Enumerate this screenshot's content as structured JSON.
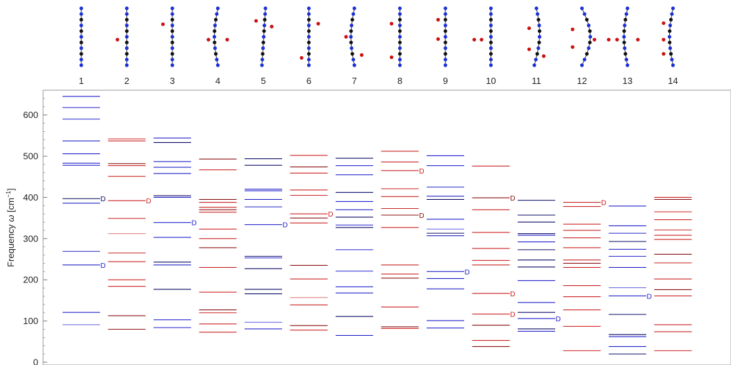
{
  "chart_data": {
    "type": "energy-level",
    "ylabel_main": "Frequency ",
    "ylabel_omega": "ω",
    "ylabel_unit_open": " [cm",
    "ylabel_exp": "−1",
    "ylabel_unit_close": "]",
    "ylim": [
      0,
      660
    ],
    "y_ticks": [
      0,
      100,
      200,
      300,
      400,
      500,
      600
    ],
    "categories": [
      "1",
      "2",
      "3",
      "4",
      "5",
      "6",
      "7",
      "8",
      "9",
      "10",
      "11",
      "12",
      "13",
      "14"
    ],
    "colors": {
      "red": "#cc2222",
      "blue": "#2222cc",
      "dark_red": "#8b1010",
      "dark_blue": "#0a0a66",
      "light_red": "#e08080",
      "light_blue": "#7070e0"
    },
    "columns": [
      {
        "label": "1",
        "levels": [
          {
            "v": 645,
            "c": "blue"
          },
          {
            "v": 618,
            "c": "blue"
          },
          {
            "v": 590,
            "c": "blue"
          },
          {
            "v": 537,
            "c": "blue"
          },
          {
            "v": 506,
            "c": "blue"
          },
          {
            "v": 483,
            "c": "blue"
          },
          {
            "v": 478,
            "c": "blue"
          },
          {
            "v": 397,
            "c": "dark_blue",
            "mark": "D"
          },
          {
            "v": 386,
            "c": "blue"
          },
          {
            "v": 269,
            "c": "blue"
          },
          {
            "v": 236,
            "c": "blue",
            "mark": "D"
          },
          {
            "v": 121,
            "c": "blue"
          },
          {
            "v": 91,
            "c": "light_blue"
          }
        ]
      },
      {
        "label": "2",
        "levels": [
          {
            "v": 542,
            "c": "red"
          },
          {
            "v": 537,
            "c": "red"
          },
          {
            "v": 482,
            "c": "dark_red"
          },
          {
            "v": 477,
            "c": "red"
          },
          {
            "v": 451,
            "c": "red"
          },
          {
            "v": 392,
            "c": "red",
            "mark": "D"
          },
          {
            "v": 349,
            "c": "red"
          },
          {
            "v": 312,
            "c": "light_red"
          },
          {
            "v": 265,
            "c": "red"
          },
          {
            "v": 244,
            "c": "red"
          },
          {
            "v": 200,
            "c": "red"
          },
          {
            "v": 184,
            "c": "red"
          },
          {
            "v": 113,
            "c": "dark_red"
          },
          {
            "v": 80,
            "c": "dark_red"
          }
        ]
      },
      {
        "label": "3",
        "levels": [
          {
            "v": 544,
            "c": "blue"
          },
          {
            "v": 533,
            "c": "dark_blue"
          },
          {
            "v": 487,
            "c": "blue"
          },
          {
            "v": 473,
            "c": "blue"
          },
          {
            "v": 458,
            "c": "blue"
          },
          {
            "v": 404,
            "c": "dark_blue"
          },
          {
            "v": 400,
            "c": "blue"
          },
          {
            "v": 339,
            "c": "blue",
            "mark": "D"
          },
          {
            "v": 303,
            "c": "blue"
          },
          {
            "v": 243,
            "c": "dark_blue"
          },
          {
            "v": 236,
            "c": "blue"
          },
          {
            "v": 177,
            "c": "dark_blue"
          },
          {
            "v": 103,
            "c": "blue"
          },
          {
            "v": 84,
            "c": "blue"
          }
        ]
      },
      {
        "label": "4",
        "levels": [
          {
            "v": 493,
            "c": "dark_red"
          },
          {
            "v": 467,
            "c": "red"
          },
          {
            "v": 395,
            "c": "dark_red"
          },
          {
            "v": 388,
            "c": "red"
          },
          {
            "v": 376,
            "c": "red"
          },
          {
            "v": 370,
            "c": "dark_red"
          },
          {
            "v": 364,
            "c": "red"
          },
          {
            "v": 323,
            "c": "red"
          },
          {
            "v": 300,
            "c": "red"
          },
          {
            "v": 278,
            "c": "dark_red"
          },
          {
            "v": 230,
            "c": "red"
          },
          {
            "v": 170,
            "c": "red"
          },
          {
            "v": 127,
            "c": "dark_red"
          },
          {
            "v": 120,
            "c": "red"
          },
          {
            "v": 93,
            "c": "red"
          },
          {
            "v": 73,
            "c": "red"
          }
        ]
      },
      {
        "label": "5",
        "levels": [
          {
            "v": 494,
            "c": "dark_blue"
          },
          {
            "v": 478,
            "c": "dark_blue"
          },
          {
            "v": 420,
            "c": "blue"
          },
          {
            "v": 416,
            "c": "blue"
          },
          {
            "v": 395,
            "c": "blue"
          },
          {
            "v": 377,
            "c": "blue"
          },
          {
            "v": 334,
            "c": "blue",
            "mark": "D"
          },
          {
            "v": 257,
            "c": "dark_blue"
          },
          {
            "v": 253,
            "c": "blue"
          },
          {
            "v": 227,
            "c": "dark_blue"
          },
          {
            "v": 177,
            "c": "dark_blue"
          },
          {
            "v": 166,
            "c": "dark_blue"
          },
          {
            "v": 97,
            "c": "light_blue"
          },
          {
            "v": 81,
            "c": "blue"
          }
        ]
      },
      {
        "label": "6",
        "levels": [
          {
            "v": 502,
            "c": "red"
          },
          {
            "v": 474,
            "c": "dark_red"
          },
          {
            "v": 459,
            "c": "red"
          },
          {
            "v": 418,
            "c": "red"
          },
          {
            "v": 405,
            "c": "red"
          },
          {
            "v": 360,
            "c": "red",
            "mark": "D"
          },
          {
            "v": 350,
            "c": "dark_red"
          },
          {
            "v": 338,
            "c": "red"
          },
          {
            "v": 235,
            "c": "dark_red"
          },
          {
            "v": 202,
            "c": "red"
          },
          {
            "v": 157,
            "c": "light_red"
          },
          {
            "v": 139,
            "c": "red"
          },
          {
            "v": 89,
            "c": "dark_red"
          },
          {
            "v": 78,
            "c": "red"
          }
        ]
      },
      {
        "label": "7",
        "levels": [
          {
            "v": 495,
            "c": "dark_blue"
          },
          {
            "v": 477,
            "c": "blue"
          },
          {
            "v": 455,
            "c": "blue"
          },
          {
            "v": 412,
            "c": "dark_blue"
          },
          {
            "v": 390,
            "c": "blue"
          },
          {
            "v": 370,
            "c": "blue"
          },
          {
            "v": 352,
            "c": "dark_blue"
          },
          {
            "v": 333,
            "c": "blue"
          },
          {
            "v": 327,
            "c": "dark_blue"
          },
          {
            "v": 273,
            "c": "blue"
          },
          {
            "v": 221,
            "c": "blue"
          },
          {
            "v": 183,
            "c": "blue"
          },
          {
            "v": 168,
            "c": "blue"
          },
          {
            "v": 111,
            "c": "dark_blue"
          },
          {
            "v": 65,
            "c": "blue"
          }
        ]
      },
      {
        "label": "8",
        "levels": [
          {
            "v": 512,
            "c": "red"
          },
          {
            "v": 486,
            "c": "red"
          },
          {
            "v": 465,
            "c": "red",
            "mark": "D"
          },
          {
            "v": 421,
            "c": "red"
          },
          {
            "v": 402,
            "c": "red"
          },
          {
            "v": 373,
            "c": "red"
          },
          {
            "v": 357,
            "c": "dark_red",
            "mark": "D"
          },
          {
            "v": 327,
            "c": "red"
          },
          {
            "v": 236,
            "c": "red"
          },
          {
            "v": 214,
            "c": "red"
          },
          {
            "v": 204,
            "c": "dark_red"
          },
          {
            "v": 134,
            "c": "red"
          },
          {
            "v": 86,
            "c": "dark_red"
          },
          {
            "v": 82,
            "c": "red"
          }
        ]
      },
      {
        "label": "9",
        "levels": [
          {
            "v": 501,
            "c": "blue"
          },
          {
            "v": 477,
            "c": "blue"
          },
          {
            "v": 425,
            "c": "blue"
          },
          {
            "v": 403,
            "c": "blue"
          },
          {
            "v": 395,
            "c": "dark_blue"
          },
          {
            "v": 347,
            "c": "blue"
          },
          {
            "v": 323,
            "c": "light_blue"
          },
          {
            "v": 313,
            "c": "dark_blue"
          },
          {
            "v": 307,
            "c": "blue"
          },
          {
            "v": 220,
            "c": "blue",
            "mark": "D"
          },
          {
            "v": 203,
            "c": "blue"
          },
          {
            "v": 178,
            "c": "blue"
          },
          {
            "v": 101,
            "c": "blue"
          },
          {
            "v": 83,
            "c": "blue"
          }
        ]
      },
      {
        "label": "10",
        "levels": [
          {
            "v": 476,
            "c": "red"
          },
          {
            "v": 399,
            "c": "dark_red",
            "mark": "D"
          },
          {
            "v": 370,
            "c": "red"
          },
          {
            "v": 315,
            "c": "red"
          },
          {
            "v": 276,
            "c": "red"
          },
          {
            "v": 247,
            "c": "red"
          },
          {
            "v": 236,
            "c": "red"
          },
          {
            "v": 167,
            "c": "red",
            "mark": "D"
          },
          {
            "v": 117,
            "c": "red",
            "mark": "D"
          },
          {
            "v": 90,
            "c": "dark_red"
          },
          {
            "v": 53,
            "c": "red"
          },
          {
            "v": 38,
            "c": "dark_red"
          }
        ]
      },
      {
        "label": "11",
        "levels": [
          {
            "v": 393,
            "c": "dark_blue"
          },
          {
            "v": 357,
            "c": "dark_blue"
          },
          {
            "v": 340,
            "c": "dark_blue"
          },
          {
            "v": 312,
            "c": "dark_blue"
          },
          {
            "v": 308,
            "c": "blue"
          },
          {
            "v": 292,
            "c": "blue"
          },
          {
            "v": 273,
            "c": "dark_blue"
          },
          {
            "v": 248,
            "c": "dark_blue"
          },
          {
            "v": 231,
            "c": "dark_blue"
          },
          {
            "v": 198,
            "c": "blue"
          },
          {
            "v": 145,
            "c": "blue"
          },
          {
            "v": 121,
            "c": "dark_blue"
          },
          {
            "v": 106,
            "c": "blue",
            "mark": "D"
          },
          {
            "v": 81,
            "c": "dark_blue"
          },
          {
            "v": 75,
            "c": "blue"
          }
        ]
      },
      {
        "label": "12",
        "levels": [
          {
            "v": 388,
            "c": "red",
            "mark": "D"
          },
          {
            "v": 378,
            "c": "red"
          },
          {
            "v": 335,
            "c": "red"
          },
          {
            "v": 320,
            "c": "red"
          },
          {
            "v": 302,
            "c": "red"
          },
          {
            "v": 278,
            "c": "red"
          },
          {
            "v": 248,
            "c": "red"
          },
          {
            "v": 240,
            "c": "dark_red"
          },
          {
            "v": 230,
            "c": "red"
          },
          {
            "v": 186,
            "c": "red"
          },
          {
            "v": 159,
            "c": "red"
          },
          {
            "v": 127,
            "c": "red"
          },
          {
            "v": 87,
            "c": "red"
          },
          {
            "v": 28,
            "c": "red"
          }
        ]
      },
      {
        "label": "13",
        "levels": [
          {
            "v": 379,
            "c": "blue"
          },
          {
            "v": 331,
            "c": "blue"
          },
          {
            "v": 313,
            "c": "blue"
          },
          {
            "v": 293,
            "c": "dark_blue"
          },
          {
            "v": 274,
            "c": "blue"
          },
          {
            "v": 257,
            "c": "blue"
          },
          {
            "v": 230,
            "c": "blue"
          },
          {
            "v": 181,
            "c": "light_blue"
          },
          {
            "v": 161,
            "c": "blue",
            "mark": "D"
          },
          {
            "v": 116,
            "c": "dark_blue"
          },
          {
            "v": 67,
            "c": "dark_blue"
          },
          {
            "v": 62,
            "c": "blue"
          },
          {
            "v": 38,
            "c": "blue"
          },
          {
            "v": 20,
            "c": "dark_blue"
          }
        ]
      },
      {
        "label": "14",
        "levels": [
          {
            "v": 400,
            "c": "red"
          },
          {
            "v": 395,
            "c": "dark_red"
          },
          {
            "v": 365,
            "c": "red"
          },
          {
            "v": 346,
            "c": "red"
          },
          {
            "v": 321,
            "c": "red"
          },
          {
            "v": 308,
            "c": "red"
          },
          {
            "v": 298,
            "c": "red"
          },
          {
            "v": 262,
            "c": "dark_red"
          },
          {
            "v": 241,
            "c": "red"
          },
          {
            "v": 202,
            "c": "red"
          },
          {
            "v": 176,
            "c": "dark_red"
          },
          {
            "v": 161,
            "c": "red"
          },
          {
            "v": 91,
            "c": "red"
          },
          {
            "v": 74,
            "c": "red"
          },
          {
            "v": 28,
            "c": "red"
          }
        ]
      }
    ],
    "mark_text": "D"
  },
  "structures": [
    {
      "type": "straight",
      "dots": []
    },
    {
      "type": "straight",
      "dots": [
        [
          -0.45,
          0.55
        ]
      ]
    },
    {
      "type": "straight",
      "dots": [
        [
          -0.45,
          0.28
        ]
      ]
    },
    {
      "type": "bend-left",
      "dots": [
        [
          -0.45,
          0.55
        ],
        [
          0.45,
          0.55
        ]
      ]
    },
    {
      "type": "tilt",
      "dots": [
        [
          -0.35,
          0.22
        ],
        [
          0.4,
          0.32
        ]
      ]
    },
    {
      "type": "straight",
      "dots": [
        [
          -0.35,
          0.87
        ],
        [
          0.45,
          0.27
        ]
      ]
    },
    {
      "type": "bend-left",
      "dots": [
        [
          -0.4,
          0.5
        ],
        [
          0.35,
          0.82
        ]
      ]
    },
    {
      "type": "straight",
      "dots": [
        [
          -0.4,
          0.27
        ],
        [
          -0.4,
          0.86
        ]
      ]
    },
    {
      "type": "straight",
      "dots": [
        [
          -0.35,
          0.2
        ],
        [
          -0.35,
          0.54
        ]
      ]
    },
    {
      "type": "straight",
      "dots": [
        [
          -0.45,
          0.55
        ],
        [
          -0.8,
          0.55
        ]
      ]
    },
    {
      "type": "arc-right",
      "dots": [
        [
          -0.35,
          0.35
        ],
        [
          -0.35,
          0.72
        ],
        [
          0.35,
          0.84
        ]
      ]
    },
    {
      "type": "arc-right-strong",
      "dots": [
        [
          -0.45,
          0.37
        ],
        [
          -0.45,
          0.68
        ],
        [
          0.6,
          0.55
        ]
      ]
    },
    {
      "type": "bend-left",
      "dots": [
        [
          -0.5,
          0.55
        ],
        [
          -0.9,
          0.55
        ],
        [
          0.5,
          0.55
        ]
      ]
    },
    {
      "type": "bend-left",
      "dots": [
        [
          -0.45,
          0.26
        ],
        [
          -0.45,
          0.55
        ],
        [
          -0.45,
          0.8
        ]
      ]
    }
  ]
}
